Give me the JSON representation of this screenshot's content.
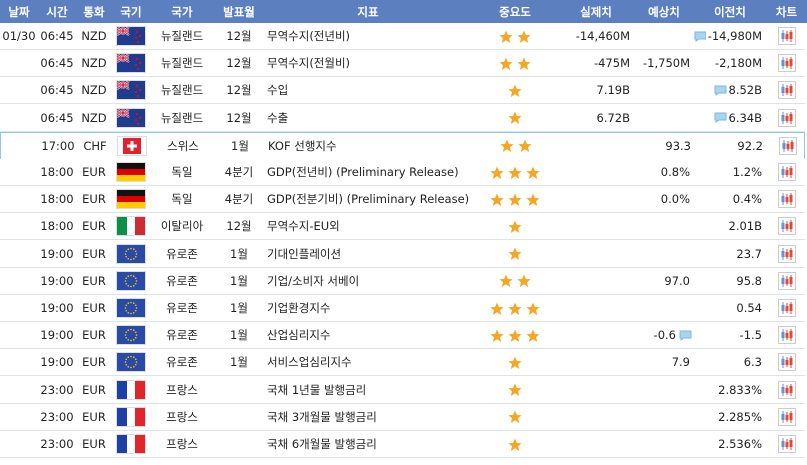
{
  "header": [
    "날짜",
    "시간",
    "통화",
    "국기",
    "국가",
    "발표월",
    "지표",
    "중요도",
    "실제치",
    "예상치",
    "이전치",
    "차트"
  ],
  "rows": [
    {
      "date": "01/30",
      "time": "06:45",
      "currency": "NZD",
      "country": "뉴질랜드",
      "period": "12월",
      "indicator": "무역수지(전년비)",
      "importance": 2,
      "actual": "-14,460M",
      "previous": "-14,980M"
    },
    {
      "time": "06:45",
      "currency": "NZD",
      "country": "뉴질랜드",
      "period": "12월",
      "indicator": "무역수지(전월비)",
      "importance": 2,
      "actual": "-475M",
      "forecast": "-1,750M",
      "previous": "-2,180M"
    },
    {
      "time": "06:45",
      "currency": "NZD",
      "country": "뉴질랜드",
      "period": "12월",
      "indicator": "수입",
      "importance": 1,
      "actual": "7.19B",
      "previous": "8.52B"
    },
    {
      "time": "06:45",
      "currency": "NZD",
      "country": "뉴질랜드",
      "period": "12월",
      "indicator": "수출",
      "importance": 1,
      "actual": "6.72B",
      "previous": "6.34B"
    },
    {
      "time": "17:00",
      "currency": "CHF",
      "country": "스위스",
      "period": "1월",
      "indicator": "KOF 선행지수",
      "importance": 2,
      "forecast": "93.3",
      "previous": "92.2"
    },
    {
      "time": "18:00",
      "currency": "EUR",
      "country": "독일",
      "period": "4분기",
      "indicator": "GDP(전년비) (Preliminary Release)",
      "importance": 3,
      "forecast": "0.8%",
      "previous": "1.2%"
    },
    {
      "time": "18:00",
      "currency": "EUR",
      "country": "독일",
      "period": "4분기",
      "indicator": "GDP(전분기비) (Preliminary Release)",
      "importance": 3,
      "forecast": "0.0%",
      "previous": "0.4%"
    },
    {
      "time": "18:00",
      "currency": "EUR",
      "country": "이탈리아",
      "period": "12월",
      "indicator": "무역수지-EU외",
      "importance": 1,
      "previous": "2.01B"
    },
    {
      "time": "19:00",
      "currency": "EUR",
      "country": "유로존",
      "period": "1월",
      "indicator": "기대인플레이션",
      "importance": 1,
      "previous": "23.7"
    },
    {
      "time": "19:00",
      "currency": "EUR",
      "country": "유로존",
      "period": "1월",
      "indicator": "기업/소비자 서베이",
      "importance": 2,
      "forecast": "97.0",
      "previous": "95.8"
    },
    {
      "time": "19:00",
      "currency": "EUR",
      "country": "유로존",
      "period": "1월",
      "indicator": "기업환경지수",
      "importance": 3,
      "previous": "0.54"
    },
    {
      "time": "19:00",
      "currency": "EUR",
      "country": "유로존",
      "period": "1월",
      "indicator": "산업심리지수",
      "importance": 3,
      "forecast": "-0.6",
      "previous": "-1.5"
    },
    {
      "time": "19:00",
      "currency": "EUR",
      "country": "유로존",
      "period": "1월",
      "indicator": "서비스업심리지수",
      "importance": 1,
      "forecast": "7.9",
      "previous": "6.3"
    },
    {
      "time": "23:00",
      "currency": "EUR",
      "country": "프랑스",
      "indicator": "국채 1년물 발행금리",
      "importance": 1,
      "previous": "2.833%"
    },
    {
      "time": "23:00",
      "currency": "EUR",
      "country": "프랑스",
      "indicator": "국채 3개월물 발행금리",
      "importance": 1,
      "previous": "2.285%"
    },
    {
      "time": "23:00",
      "currency": "EUR",
      "country": "프랑스",
      "indicator": "국채 6개월물 발행금리",
      "importance": 1,
      "previous": "2.536%"
    }
  ]
}
